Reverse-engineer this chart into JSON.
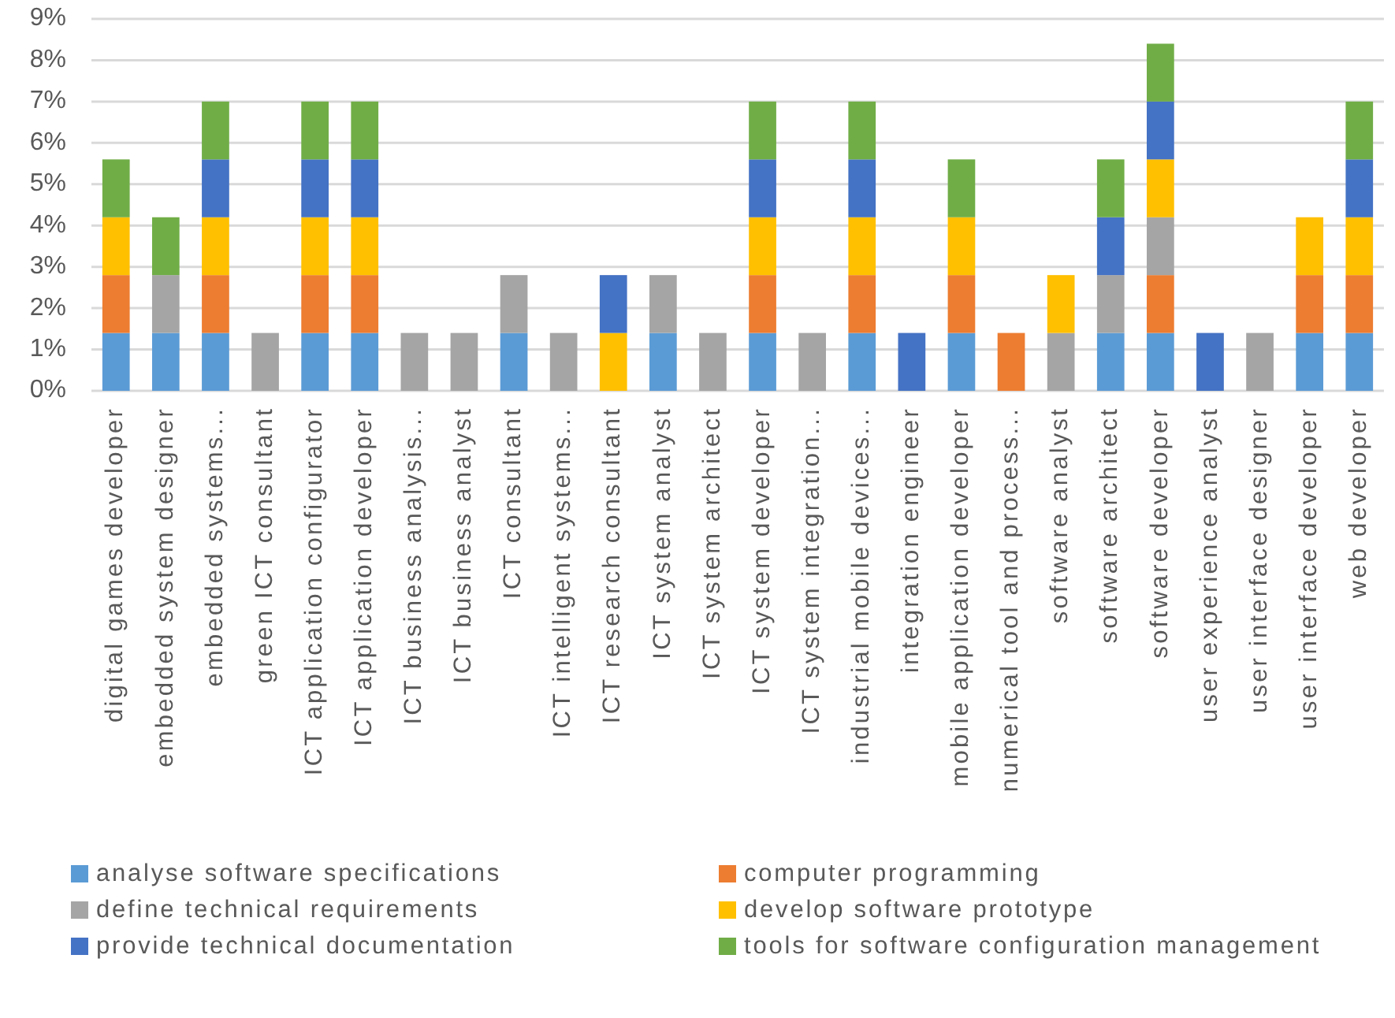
{
  "chart_data": {
    "type": "bar",
    "stacked": true,
    "categories": [
      "digital games developer",
      "embedded system designer",
      "embedded systems...",
      "green ICT consultant",
      "ICT application configurator",
      "ICT application developer",
      "ICT business analysis...",
      "ICT business analyst",
      "ICT consultant",
      "ICT intelligent systems...",
      "ICT research consultant",
      "ICT system analyst",
      "ICT system architect",
      "ICT system developer",
      "ICT system integration...",
      "industrial mobile devices...",
      "integration engineer",
      "mobile application developer",
      "numerical tool and process...",
      "software analyst",
      "software architect",
      "software developer",
      "user experience analyst",
      "user interface designer",
      "user interface developer",
      "web developer"
    ],
    "series": [
      {
        "name": "analyse software specifications",
        "color": "#5b9bd5",
        "values": [
          1.4,
          1.4,
          1.4,
          null,
          1.4,
          1.4,
          null,
          null,
          1.4,
          null,
          null,
          1.4,
          null,
          1.4,
          null,
          1.4,
          null,
          1.4,
          null,
          null,
          1.4,
          1.4,
          null,
          null,
          1.4,
          1.4
        ]
      },
      {
        "name": "computer programming",
        "color": "#ed7d31",
        "values": [
          1.4,
          null,
          1.4,
          null,
          1.4,
          1.4,
          null,
          null,
          null,
          null,
          null,
          null,
          null,
          1.4,
          null,
          1.4,
          null,
          1.4,
          1.4,
          null,
          null,
          1.4,
          null,
          null,
          1.4,
          1.4
        ]
      },
      {
        "name": "define technical requirements",
        "color": "#a5a5a5",
        "values": [
          null,
          1.4,
          null,
          1.4,
          null,
          null,
          1.4,
          1.4,
          1.4,
          1.4,
          null,
          1.4,
          1.4,
          null,
          1.4,
          null,
          null,
          null,
          null,
          1.4,
          1.4,
          1.4,
          null,
          1.4,
          null,
          null
        ]
      },
      {
        "name": "develop software prototype",
        "color": "#ffc000",
        "values": [
          1.4,
          null,
          1.4,
          null,
          1.4,
          1.4,
          null,
          null,
          null,
          null,
          1.4,
          null,
          null,
          1.4,
          null,
          1.4,
          null,
          1.4,
          null,
          1.4,
          null,
          1.4,
          null,
          null,
          1.4,
          1.4
        ]
      },
      {
        "name": "provide technical documentation",
        "color": "#4472c4",
        "values": [
          null,
          null,
          1.4,
          null,
          1.4,
          1.4,
          null,
          null,
          null,
          null,
          1.4,
          null,
          null,
          1.4,
          null,
          1.4,
          1.4,
          null,
          null,
          null,
          1.4,
          1.4,
          1.4,
          null,
          null,
          1.4
        ]
      },
      {
        "name": "tools for software configuration management",
        "color": "#70ad47",
        "values": [
          1.4,
          1.4,
          1.4,
          null,
          1.4,
          1.4,
          null,
          null,
          null,
          null,
          null,
          null,
          null,
          1.4,
          null,
          1.4,
          null,
          1.4,
          null,
          null,
          1.4,
          1.4,
          null,
          null,
          null,
          1.4
        ]
      }
    ],
    "ylim": [
      0,
      9
    ],
    "yticks": [
      {
        "value": 0,
        "label": "0%"
      },
      {
        "value": 1,
        "label": "1%"
      },
      {
        "value": 2,
        "label": "2%"
      },
      {
        "value": 3,
        "label": "3%"
      },
      {
        "value": 4,
        "label": "4%"
      },
      {
        "value": 5,
        "label": "5%"
      },
      {
        "value": 6,
        "label": "6%"
      },
      {
        "value": 7,
        "label": "7%"
      },
      {
        "value": 8,
        "label": "8%"
      },
      {
        "value": 9,
        "label": "9%"
      }
    ],
    "grid": "y",
    "legend": "bottom"
  }
}
